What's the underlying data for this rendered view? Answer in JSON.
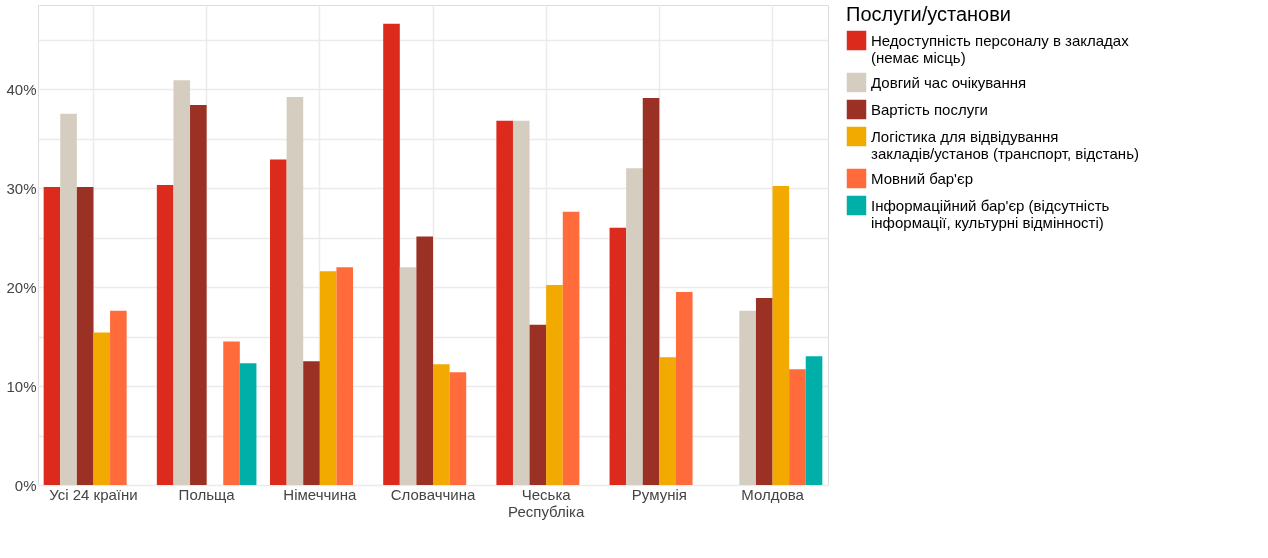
{
  "chart_data": {
    "type": "bar",
    "legend_title": "Послуги/установи",
    "categories": [
      "Усі 24 країни",
      "Польща",
      "Німеччина",
      "Словаччина",
      "Чеська\nРеспубліка",
      "Румунія",
      "Молдова"
    ],
    "series": [
      {
        "name": "Недоступність персоналу в закладах\n(немає місць)",
        "color": "#dc2a1c",
        "values": [
          30.1,
          30.3,
          32.9,
          46.6,
          36.8,
          26.0,
          null
        ]
      },
      {
        "name": "Довгий час очікування",
        "color": "#d5cdbf",
        "values": [
          37.5,
          40.9,
          39.2,
          22.0,
          36.8,
          32.0,
          17.6
        ]
      },
      {
        "name": "Вартість послуги",
        "color": "#9a3124",
        "values": [
          30.1,
          38.4,
          12.5,
          25.1,
          16.2,
          39.1,
          18.9
        ]
      },
      {
        "name": "Логістика для відвідування\nзакладів/установ (транспорт, відстань)",
        "color": "#f2a900",
        "values": [
          15.4,
          null,
          21.6,
          12.2,
          20.2,
          12.9,
          30.2
        ]
      },
      {
        "name": "Мовний бар'єр",
        "color": "#ff6b3b",
        "values": [
          17.6,
          14.5,
          22.0,
          11.4,
          27.6,
          19.5,
          11.7
        ]
      },
      {
        "name": "Інформаційний бар'єр (відсутність\nінформації, культурні відмінності)",
        "color": "#00b0a8",
        "values": [
          null,
          12.3,
          null,
          null,
          null,
          null,
          13.0
        ]
      }
    ],
    "ylim": [
      0,
      48.5
    ],
    "yticks": [
      {
        "value": 0,
        "label": "0%"
      },
      {
        "value": 5,
        "label": null
      },
      {
        "value": 10,
        "label": "10%"
      },
      {
        "value": 15,
        "label": null
      },
      {
        "value": 20,
        "label": "20%"
      },
      {
        "value": 25,
        "label": null
      },
      {
        "value": 30,
        "label": "30%"
      },
      {
        "value": 35,
        "label": null
      },
      {
        "value": 40,
        "label": "40%"
      },
      {
        "value": 45,
        "label": null
      }
    ],
    "grid": true,
    "legend": "right"
  }
}
